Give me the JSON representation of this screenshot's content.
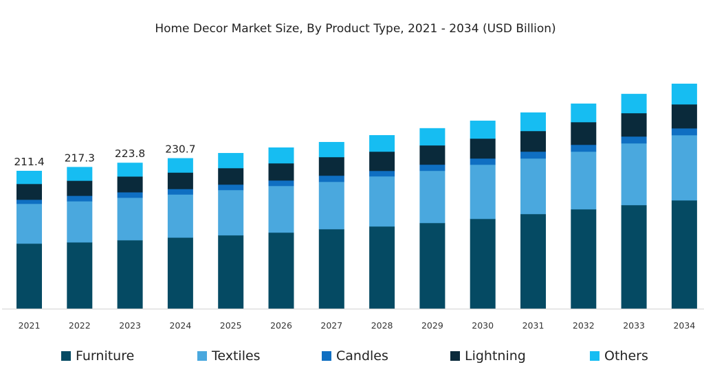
{
  "chart_data": {
    "type": "bar",
    "stacked": true,
    "title": "Home Decor Market Size, By Product Type, 2021 - 2034 (USD Billion)",
    "xlabel": "",
    "ylabel": "",
    "ylim": [
      0,
      380
    ],
    "grid": false,
    "legend_position": "bottom",
    "categories": [
      "2021",
      "2022",
      "2023",
      "2024",
      "2025",
      "2026",
      "2027",
      "2028",
      "2029",
      "2030",
      "2031",
      "2032",
      "2033",
      "2034"
    ],
    "series": [
      {
        "name": "Furniture",
        "color": "#054a63",
        "values": [
          99.9,
          101.8,
          105.1,
          109.1,
          112.6,
          116.8,
          122.0,
          126.2,
          131.5,
          137.8,
          145.2,
          152.5,
          158.9,
          166.2
        ]
      },
      {
        "name": "Textiles",
        "color": "#4aa8de",
        "values": [
          61.0,
          63.0,
          65.1,
          66.1,
          69.4,
          71.5,
          72.6,
          76.8,
          80.0,
          83.1,
          85.2,
          88.4,
          94.7,
          99.9
        ]
      },
      {
        "name": "Candles",
        "color": "#0f6fc2",
        "values": [
          6.3,
          8.4,
          8.4,
          8.4,
          8.4,
          8.4,
          9.5,
          8.4,
          9.5,
          9.5,
          10.5,
          10.5,
          10.5,
          10.5
        ]
      },
      {
        "name": "Lightning",
        "color": "#0a2a3b",
        "values": [
          24.2,
          23.1,
          24.2,
          25.2,
          25.2,
          26.3,
          28.4,
          29.5,
          29.5,
          30.5,
          31.6,
          34.7,
          35.8,
          36.8
        ]
      },
      {
        "name": "Others",
        "color": "#16bdf2",
        "values": [
          20.0,
          21.0,
          21.0,
          22.0,
          23.1,
          24.2,
          23.1,
          25.2,
          26.3,
          27.4,
          28.4,
          28.4,
          29.5,
          31.6
        ]
      }
    ],
    "data_labels": [
      {
        "category": "2021",
        "text": "211.4"
      },
      {
        "category": "2022",
        "text": "217.3"
      },
      {
        "category": "2023",
        "text": "223.8"
      },
      {
        "category": "2024",
        "text": "230.7"
      }
    ]
  }
}
